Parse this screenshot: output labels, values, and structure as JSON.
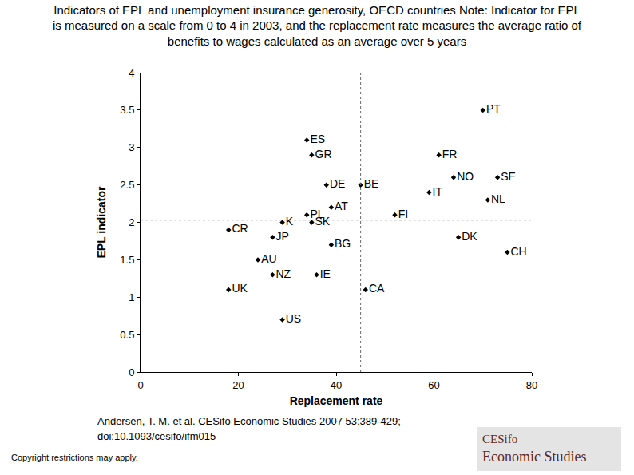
{
  "chart_data": {
    "type": "scatter",
    "title": [
      "Indicators of EPL and unemployment insurance generosity, OECD countries Note: Indicator for EPL",
      "is measured on a scale from 0 to 4 in 2003, and the replacement rate measures the average ratio of",
      "benefits to wages calculated as an average over 5 years"
    ],
    "x_label": "Replacement rate",
    "y_label": "EPL indicator",
    "labels": [
      "PT",
      "ES",
      "GR",
      "FR",
      "NO",
      "SE",
      "DE",
      "BE",
      "IT",
      "NL",
      "AT",
      "PL",
      "FI",
      "K",
      "SK",
      "CR",
      "JP",
      "DK",
      "BG",
      "CH",
      "AU",
      "NZ",
      "IE",
      "UK",
      "CA",
      "US"
    ],
    "x": [
      70,
      34,
      35,
      61,
      64,
      73,
      38,
      45,
      59,
      71,
      39,
      34,
      52,
      29,
      35,
      18,
      27,
      65,
      39,
      75,
      24,
      27,
      36,
      18,
      46,
      29
    ],
    "values": [
      3.5,
      3.1,
      2.9,
      2.9,
      2.6,
      2.6,
      2.5,
      2.5,
      2.4,
      2.3,
      2.2,
      2.1,
      2.1,
      2.0,
      2.0,
      1.9,
      1.8,
      1.8,
      1.7,
      1.6,
      1.5,
      1.3,
      1.3,
      1.1,
      1.1,
      0.7
    ],
    "color": "#000000",
    "marker": "diamond",
    "grid": false,
    "xlim": [
      0,
      80
    ],
    "xticks": [
      0,
      20,
      40,
      60,
      80
    ],
    "ylim": [
      0,
      4
    ],
    "yticks": [
      0,
      0.5,
      1,
      1.5,
      2,
      2.5,
      3,
      3.5,
      4
    ],
    "reference_lines": [
      {
        "axis": "x",
        "value": 45
      },
      {
        "axis": "y",
        "value": 2.03
      }
    ],
    "source": [
      "Andersen, T. M. et al. CESifo Economic Studies 2007 53:389-429;",
      "doi:10.1093/cesifo/ifm015"
    ],
    "copyright": "Copyright restrictions may apply.",
    "logo": [
      "CESifo",
      "Economic Studies"
    ]
  }
}
